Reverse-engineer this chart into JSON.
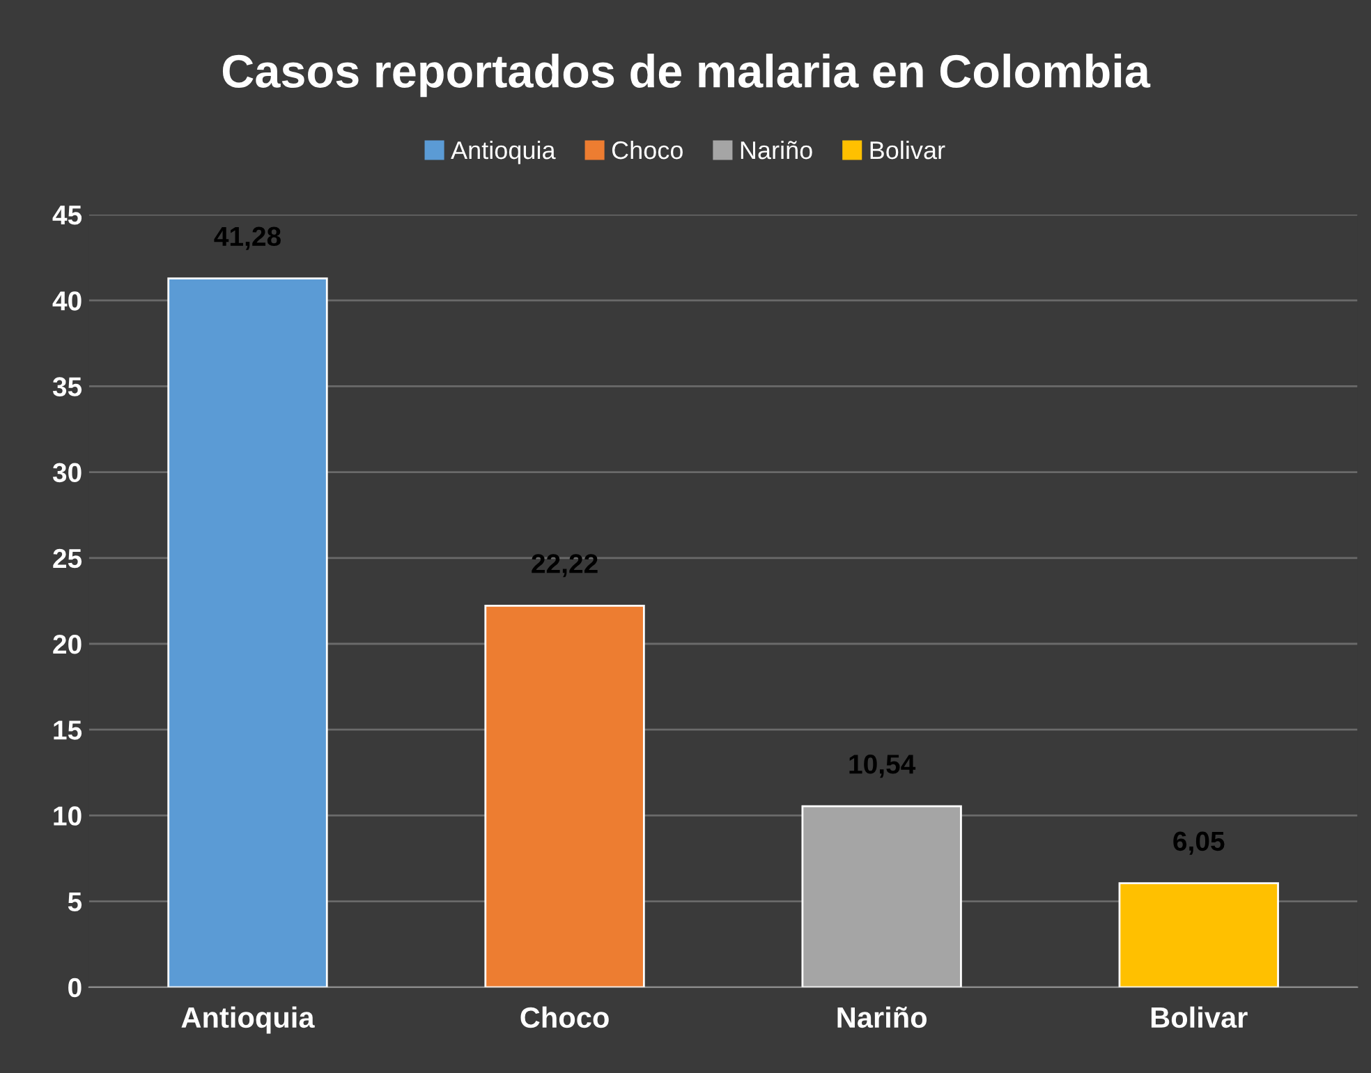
{
  "chart_data": {
    "type": "bar",
    "title": "Casos reportados de malaria en Colombia",
    "categories": [
      "Antioquia",
      "Choco",
      "Nariño",
      "Bolivar"
    ],
    "series": [
      {
        "name": "Antioquia",
        "color": "#5b9bd5",
        "values": [
          41.28,
          null,
          null,
          null
        ],
        "value_labels": [
          "41,28",
          null,
          null,
          null
        ]
      },
      {
        "name": "Choco",
        "color": "#ed7d31",
        "values": [
          null,
          22.22,
          null,
          null
        ],
        "value_labels": [
          null,
          "22,22",
          null,
          null
        ]
      },
      {
        "name": "Nariño",
        "color": "#a5a5a5",
        "values": [
          null,
          null,
          10.54,
          null
        ],
        "value_labels": [
          null,
          null,
          "10,54",
          null
        ]
      },
      {
        "name": "Bolivar",
        "color": "#ffc000",
        "values": [
          null,
          null,
          null,
          6.05
        ],
        "value_labels": [
          null,
          null,
          null,
          "6,05"
        ]
      }
    ],
    "ylim": [
      0,
      45
    ],
    "yticks": [
      0,
      5,
      10,
      15,
      20,
      25,
      30,
      35,
      40,
      45
    ],
    "grid": "y",
    "legend": "top"
  }
}
